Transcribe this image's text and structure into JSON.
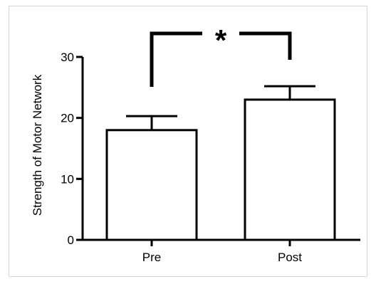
{
  "chart_data": {
    "type": "bar",
    "categories": [
      "Pre",
      "Post"
    ],
    "values": [
      18,
      23
    ],
    "error_bars": [
      2.3,
      2.2
    ],
    "ylabel": "Strength of Motor Network",
    "xlabel": "",
    "ylim": [
      0,
      30
    ],
    "yticks": [
      0,
      10,
      20,
      30
    ],
    "significance": {
      "label": "*",
      "between": [
        "Pre",
        "Post"
      ]
    },
    "bar_fill": "#ffffff",
    "bar_stroke": "#000000",
    "grid": false,
    "legend": "none"
  }
}
